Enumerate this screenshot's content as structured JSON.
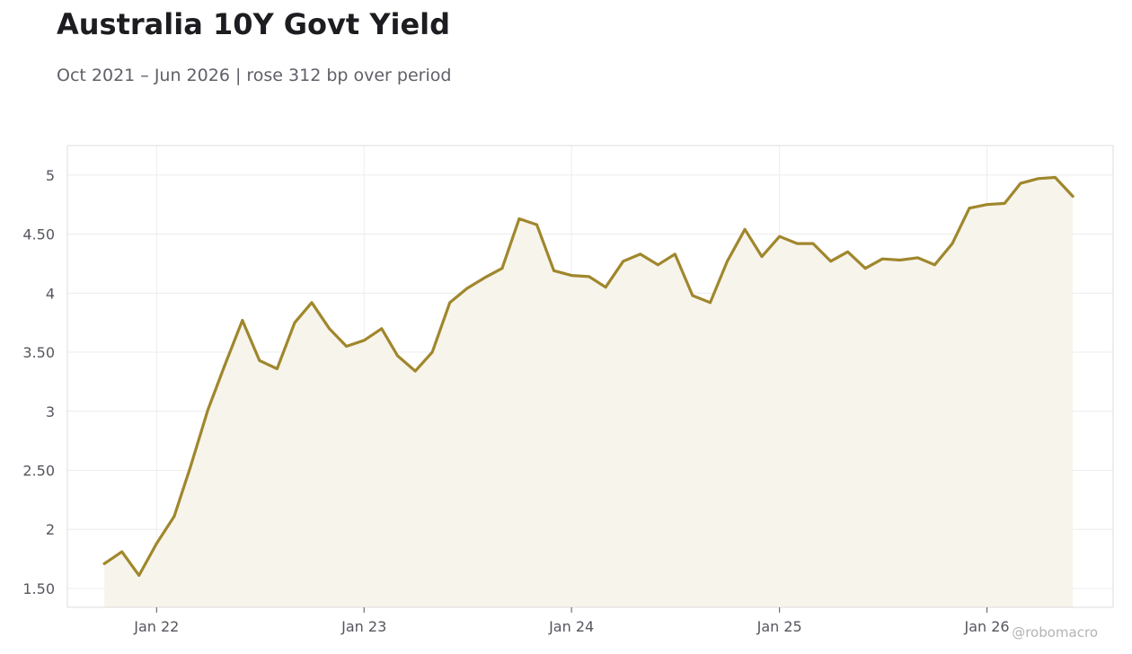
{
  "header": {
    "title": "Australia 10Y Govt Yield",
    "subtitle": "Oct 2021 – Jun 2026 | rose 312 bp over period"
  },
  "watermark": "@robomacro",
  "colors": {
    "line": "#a0872c",
    "fill": "#f7f4ec",
    "grid": "#ececec",
    "frame": "#dddddd",
    "tick_text": "#55565e"
  },
  "chart_data": {
    "type": "area",
    "title": "Australia 10Y Govt Yield",
    "subtitle": "Oct 2021 – Jun 2026 | rose 312 bp over period",
    "xlabel": "",
    "ylabel": "",
    "ylim": [
      1.34,
      5.25
    ],
    "xlim": [
      "2021-07-28",
      "2026-08-11"
    ],
    "grid": true,
    "legend": "none",
    "y_ticks": [
      {
        "value": 1.5,
        "label": "1.50"
      },
      {
        "value": 2,
        "label": "2"
      },
      {
        "value": 2.5,
        "label": "2.50"
      },
      {
        "value": 3,
        "label": "3"
      },
      {
        "value": 3.5,
        "label": "3.50"
      },
      {
        "value": 4,
        "label": "4"
      },
      {
        "value": 4.5,
        "label": "4.50"
      },
      {
        "value": 5,
        "label": "5"
      }
    ],
    "x_ticks": [
      {
        "date": "2022-01-01",
        "label": "Jan 22"
      },
      {
        "date": "2023-01-01",
        "label": "Jan 23"
      },
      {
        "date": "2024-01-01",
        "label": "Jan 24"
      },
      {
        "date": "2025-01-01",
        "label": "Jan 25"
      },
      {
        "date": "2026-01-01",
        "label": "Jan 26"
      }
    ],
    "series": [
      {
        "x": [
          "2021-10-01",
          "2021-11-01",
          "2021-12-01",
          "2022-01-01",
          "2022-02-01",
          "2022-03-01",
          "2022-04-01",
          "2022-05-01",
          "2022-06-01",
          "2022-07-01",
          "2022-08-01",
          "2022-09-01",
          "2022-10-01",
          "2022-11-01",
          "2022-12-01",
          "2023-01-01",
          "2023-02-01",
          "2023-03-01",
          "2023-04-01",
          "2023-05-01",
          "2023-06-01",
          "2023-07-01",
          "2023-08-01",
          "2023-09-01",
          "2023-10-01",
          "2023-11-01",
          "2023-12-01",
          "2024-01-01",
          "2024-02-01",
          "2024-03-01",
          "2024-04-01",
          "2024-05-01",
          "2024-06-01",
          "2024-07-01",
          "2024-08-01",
          "2024-09-01",
          "2024-10-01",
          "2024-11-01",
          "2024-12-01",
          "2025-01-01",
          "2025-02-01",
          "2025-03-01",
          "2025-04-01",
          "2025-05-01",
          "2025-06-01",
          "2025-07-01",
          "2025-08-01",
          "2025-09-01",
          "2025-10-01",
          "2025-11-01",
          "2025-12-01",
          "2026-01-01",
          "2026-02-01",
          "2026-03-01",
          "2026-04-01",
          "2026-05-01",
          "2026-06-01"
        ],
        "values": [
          1.71,
          1.81,
          1.61,
          1.88,
          2.11,
          2.52,
          3.01,
          3.39,
          3.77,
          3.43,
          3.36,
          3.75,
          3.92,
          3.7,
          3.55,
          3.6,
          3.7,
          3.47,
          3.34,
          3.5,
          3.92,
          4.04,
          4.13,
          4.21,
          4.63,
          4.58,
          4.19,
          4.15,
          4.14,
          4.05,
          4.27,
          4.33,
          4.24,
          4.33,
          3.98,
          3.92,
          4.27,
          4.54,
          4.31,
          4.48,
          4.42,
          4.42,
          4.27,
          4.35,
          4.21,
          4.29,
          4.28,
          4.3,
          4.24,
          4.42,
          4.72,
          4.75,
          4.76,
          4.93,
          4.97,
          4.98,
          4.82
        ]
      }
    ]
  }
}
